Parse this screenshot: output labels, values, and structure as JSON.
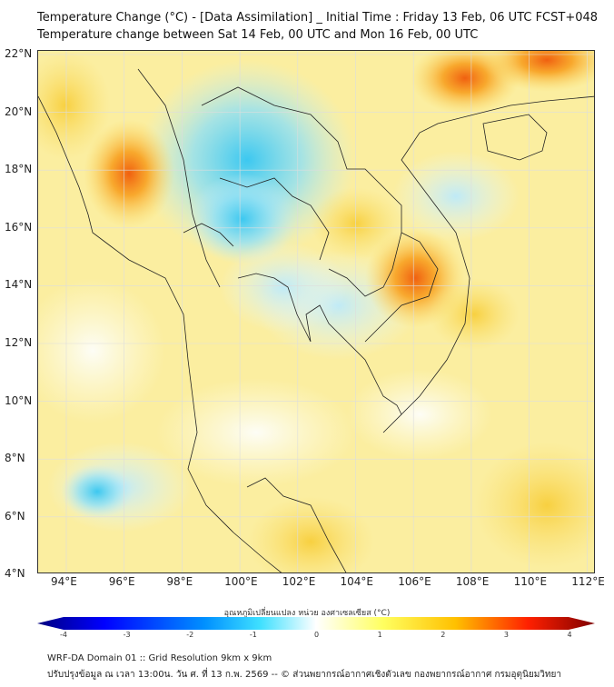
{
  "title": {
    "line1": "Temperature Change (°C) - [Data Assimilation] _ Initial Time : Friday 13 Feb, 06 UTC FCST+048",
    "line2": "Temperature change between Sat 14 Feb, 00 UTC and Mon 16 Feb, 00 UTC"
  },
  "map": {
    "lon_labels": [
      "94°E",
      "96°E",
      "98°E",
      "100°E",
      "102°E",
      "104°E",
      "106°E",
      "108°E",
      "110°E",
      "112°E"
    ],
    "lat_labels": [
      "22°N",
      "20°N",
      "18°N",
      "16°N",
      "14°N",
      "12°N",
      "10°N",
      "8°N",
      "6°N",
      "4°N"
    ]
  },
  "colorbar": {
    "title": "อุณหภูมิเปลี่ยนแปลง หน่วย องศาเซลเซียส (°C)",
    "ticks": [
      "-4",
      "-3",
      "-2",
      "-1",
      "0",
      "1",
      "2",
      "3",
      "4"
    ],
    "range": [
      -4,
      4
    ],
    "colors": [
      "#00007f",
      "#0000ff",
      "#0090ff",
      "#3fe0ff",
      "#ffffff",
      "#ffff60",
      "#ffc000",
      "#ff2000",
      "#7f0000"
    ]
  },
  "footer": {
    "line1": "WRF-DA Domain 01 :: Grid Resolution 9km x 9km",
    "line2": "ปรับปรุงข้อมูล ณ เวลา 13:00น. วัน ศ. ที่ 13 ก.พ. 2569 -- © ส่วนพยากรณ์อากาศเชิงตัวเลข กองพยากรณ์อากาศ กรมอุตุนิยมวิทยา"
  }
}
